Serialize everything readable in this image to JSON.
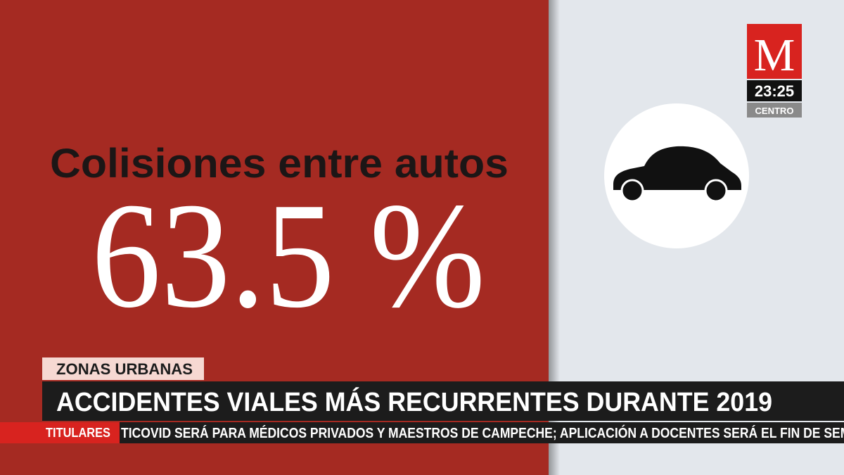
{
  "infographic": {
    "label": "Colisiones entre autos",
    "figure": "63.5 %"
  },
  "channel": {
    "logo": "M",
    "clock": "23:25",
    "zone": "CENTRO"
  },
  "lower_third": {
    "tag": "ZONAS URBANAS",
    "headline": "ACCIDENTES VIALES MÁS RECURRENTES DURANTE 2019"
  },
  "ticker": {
    "label": "TITULARES",
    "text": "TICOVID SERÁ PARA MÉDICOS PRIVADOS Y MAESTROS DE CAMPECHE; APLICACIÓN A DOCENTES SERÁ EL FIN DE SEMA"
  }
}
